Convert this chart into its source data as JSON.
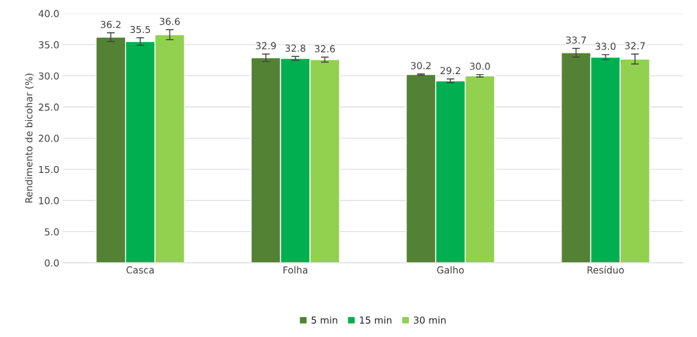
{
  "chart_data": {
    "type": "bar",
    "ylabel": "Rendimento de bicohar (%)",
    "categories": [
      "Casca",
      "Folha",
      "Galho",
      "Resíduo"
    ],
    "series": [
      {
        "name": "5 min",
        "color": "#548235",
        "values": [
          36.2,
          32.9,
          30.2,
          33.7
        ],
        "errors": [
          0.7,
          0.6,
          0.1,
          0.7
        ]
      },
      {
        "name": "15 min",
        "color": "#00b050",
        "values": [
          35.5,
          32.8,
          29.2,
          33.0
        ],
        "errors": [
          0.6,
          0.3,
          0.3,
          0.4
        ]
      },
      {
        "name": "30 min",
        "color": "#92d050",
        "values": [
          36.6,
          32.6,
          30.0,
          32.7
        ],
        "errors": [
          0.8,
          0.4,
          0.2,
          0.8
        ]
      }
    ],
    "ylim": [
      0,
      40
    ],
    "yticks": [
      {
        "value": 0,
        "label": "0.0"
      },
      {
        "value": 5,
        "label": "5.0"
      },
      {
        "value": 10,
        "label": "10.0"
      },
      {
        "value": 15,
        "label": "15.0"
      },
      {
        "value": 20,
        "label": "20.0"
      },
      {
        "value": 25,
        "label": "25.0"
      },
      {
        "value": 30,
        "label": "30.0"
      },
      {
        "value": 35,
        "label": "35.0"
      },
      {
        "value": 40,
        "label": "40.0"
      }
    ],
    "grid": "y",
    "legend": "bottom",
    "value_labels": [
      [
        "36.2",
        "32.9",
        "30.2",
        "33.7"
      ],
      [
        "35.5",
        "32.8",
        "29.2",
        "33.0"
      ],
      [
        "36.6",
        "32.6",
        "30.0",
        "32.7"
      ]
    ]
  }
}
